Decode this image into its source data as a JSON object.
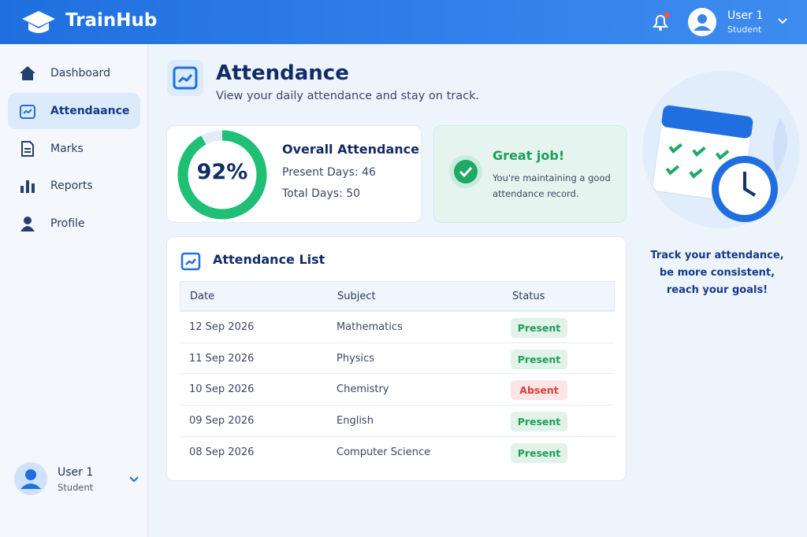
{
  "header": {
    "brand": "TrainHub",
    "user": {
      "name": "User 1",
      "role": "Student"
    }
  },
  "sidebar": {
    "items": [
      "Dashboard",
      "Attendaance",
      "Marks",
      "Reports",
      "Profile"
    ],
    "user": {
      "name": "User 1",
      "role": "Student"
    }
  },
  "page": {
    "title": "Attendance",
    "subtitle": "View your daily attendance and stay on track."
  },
  "summary": {
    "percent": 92,
    "percent_label": "92%",
    "title": "Overall Attendance",
    "present": "Present Days: 46",
    "total": "Total Days: 50",
    "ring_color": "#1fbf74"
  },
  "message": {
    "title": "Great job!",
    "text": "You're maintaining a good attendance record."
  },
  "table": {
    "title": "Attendance List",
    "headers": [
      "Date",
      "Subject",
      "Status"
    ],
    "rows": [
      [
        "12 Sep 2026",
        "Mathematics",
        "Present",
        "#1e9e5a"
      ],
      [
        "11 Sep 2026",
        "Physics",
        "Present",
        "#1e9e5a"
      ],
      [
        "10 Sep 2026",
        "Chemistry",
        "Absent",
        "#e03b3b"
      ],
      [
        "09 Sep 2026",
        "English",
        "Present",
        "#1e9e5a"
      ],
      [
        "08 Sep 2026",
        "Computer Science",
        "Present",
        "#1e9e5a"
      ]
    ]
  },
  "promo": {
    "lines": [
      "Track your attendance,",
      "be more consistent,",
      "reach your goals!"
    ]
  }
}
